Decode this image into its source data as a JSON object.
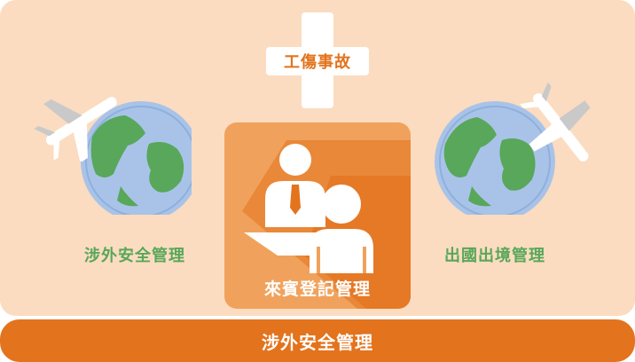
{
  "top_item": {
    "label": "工傷事故",
    "icon": "medical-cross-icon"
  },
  "center_card": {
    "label": "來賓登記管理",
    "icon": "reception-desk-people-icon"
  },
  "left_item": {
    "label": "涉外安全管理",
    "icon": "globe-with-airplane-icon"
  },
  "right_item": {
    "label": "出國出境管理",
    "icon": "globe-with-airplane-icon"
  },
  "bottom_bar": {
    "label": "涉外安全管理"
  },
  "colors": {
    "panel": "#fbdcc0",
    "accent_orange": "#e3731d",
    "card_orange": "#f0a25c",
    "green": "#58a75a",
    "globe_blue": "#a9c3e8"
  }
}
